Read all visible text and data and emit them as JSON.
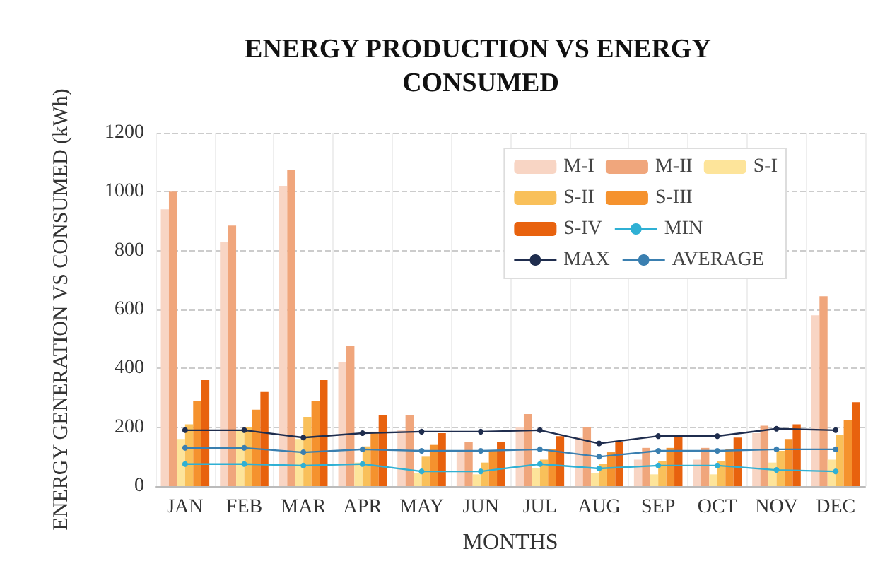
{
  "chart_data": {
    "type": "bar",
    "title": "ENERGY PRODUCTION VS ENERGY CONSUMED",
    "xlabel": "MONTHS",
    "ylabel": "ENERGY GENERATION VS CONSUMED (kWh)",
    "categories": [
      "JAN",
      "FEB",
      "MAR",
      "APR",
      "MAY",
      "JUN",
      "JUL",
      "AUG",
      "SEP",
      "OCT",
      "NOV",
      "DEC"
    ],
    "series": [
      {
        "name": "M-I",
        "color": "#f8d5c4",
        "values": [
          940,
          830,
          1020,
          420,
          190,
          115,
          200,
          165,
          90,
          90,
          180,
          580
        ]
      },
      {
        "name": "M-II",
        "color": "#f0a67c",
        "values": [
          1000,
          885,
          1075,
          475,
          240,
          150,
          245,
          200,
          130,
          130,
          205,
          645
        ]
      },
      {
        "name": "S-I",
        "color": "#fde49a",
        "values": [
          160,
          190,
          160,
          80,
          45,
          40,
          60,
          45,
          40,
          40,
          80,
          90
        ]
      },
      {
        "name": "S-II",
        "color": "#f9c05a",
        "values": [
          210,
          200,
          235,
          135,
          100,
          80,
          90,
          75,
          85,
          85,
          120,
          175
        ]
      },
      {
        "name": "S-III",
        "color": "#f5922e",
        "values": [
          290,
          260,
          290,
          185,
          140,
          120,
          125,
          115,
          130,
          125,
          160,
          225
        ]
      },
      {
        "name": "S-IV",
        "color": "#e8620e",
        "values": [
          360,
          320,
          360,
          240,
          180,
          150,
          170,
          150,
          170,
          165,
          210,
          285
        ]
      },
      {
        "name": "MIN",
        "type": "line",
        "color": "#2fb0d4",
        "values": [
          75,
          75,
          70,
          75,
          50,
          50,
          75,
          60,
          70,
          70,
          55,
          50
        ]
      },
      {
        "name": "MAX",
        "type": "line",
        "color": "#1f2d4e",
        "values": [
          190,
          190,
          165,
          180,
          185,
          185,
          190,
          145,
          170,
          170,
          195,
          190
        ]
      },
      {
        "name": "AVERAGE",
        "type": "line",
        "color": "#3a7fb0",
        "values": [
          130,
          130,
          115,
          125,
          120,
          120,
          125,
          100,
          120,
          120,
          125,
          125
        ]
      }
    ],
    "ylim": [
      0,
      1200
    ],
    "yticks": [
      0,
      200,
      400,
      600,
      800,
      1000,
      1200
    ],
    "grid": true,
    "legend": "top right",
    "marker": "circle",
    "line_style": "solid"
  }
}
